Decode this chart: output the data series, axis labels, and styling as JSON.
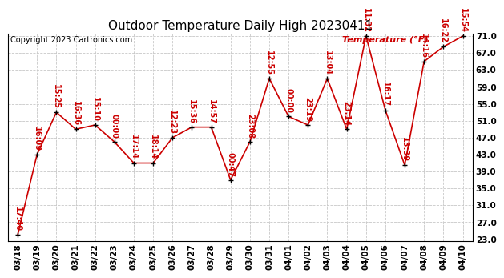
{
  "title": "Outdoor Temperature Daily High 20230411",
  "copyright": "Copyright 2023 Cartronics.com",
  "legend_label": "Temperature (°F)",
  "x_labels": [
    "03/18",
    "03/19",
    "03/20",
    "03/21",
    "03/22",
    "03/23",
    "03/24",
    "03/25",
    "03/26",
    "03/27",
    "03/28",
    "03/29",
    "03/30",
    "03/31",
    "04/01",
    "04/02",
    "04/03",
    "04/04",
    "04/05",
    "04/06",
    "04/07",
    "04/08",
    "04/09",
    "04/10"
  ],
  "temperatures": [
    24.0,
    43.0,
    53.0,
    49.0,
    50.0,
    46.0,
    41.0,
    41.0,
    47.0,
    49.5,
    49.5,
    37.0,
    46.0,
    61.0,
    52.0,
    50.0,
    61.0,
    49.0,
    71.0,
    53.5,
    40.5,
    65.0,
    68.5,
    71.0
  ],
  "time_labels": [
    "17:40",
    "16:09",
    "15:25",
    "16:36",
    "15:10",
    "00:00",
    "17:14",
    "18:14",
    "12:23",
    "15:36",
    "14:57",
    "00:47",
    "23:08",
    "12:55",
    "00:00",
    "23:19",
    "13:04",
    "23:14",
    "11:32",
    "16:17",
    "13:39",
    "14:16",
    "16:22",
    "15:54"
  ],
  "ylim_min": 23.0,
  "ylim_max": 71.0,
  "yticks": [
    23.0,
    27.0,
    31.0,
    35.0,
    39.0,
    43.0,
    47.0,
    51.0,
    55.0,
    59.0,
    63.0,
    67.0,
    71.0
  ],
  "line_color": "#cc0000",
  "marker_color": "black",
  "background_color": "#ffffff",
  "grid_color": "#c8c8c8",
  "title_fontsize": 11,
  "copyright_fontsize": 7,
  "label_fontsize": 7,
  "tick_fontsize": 7.5
}
